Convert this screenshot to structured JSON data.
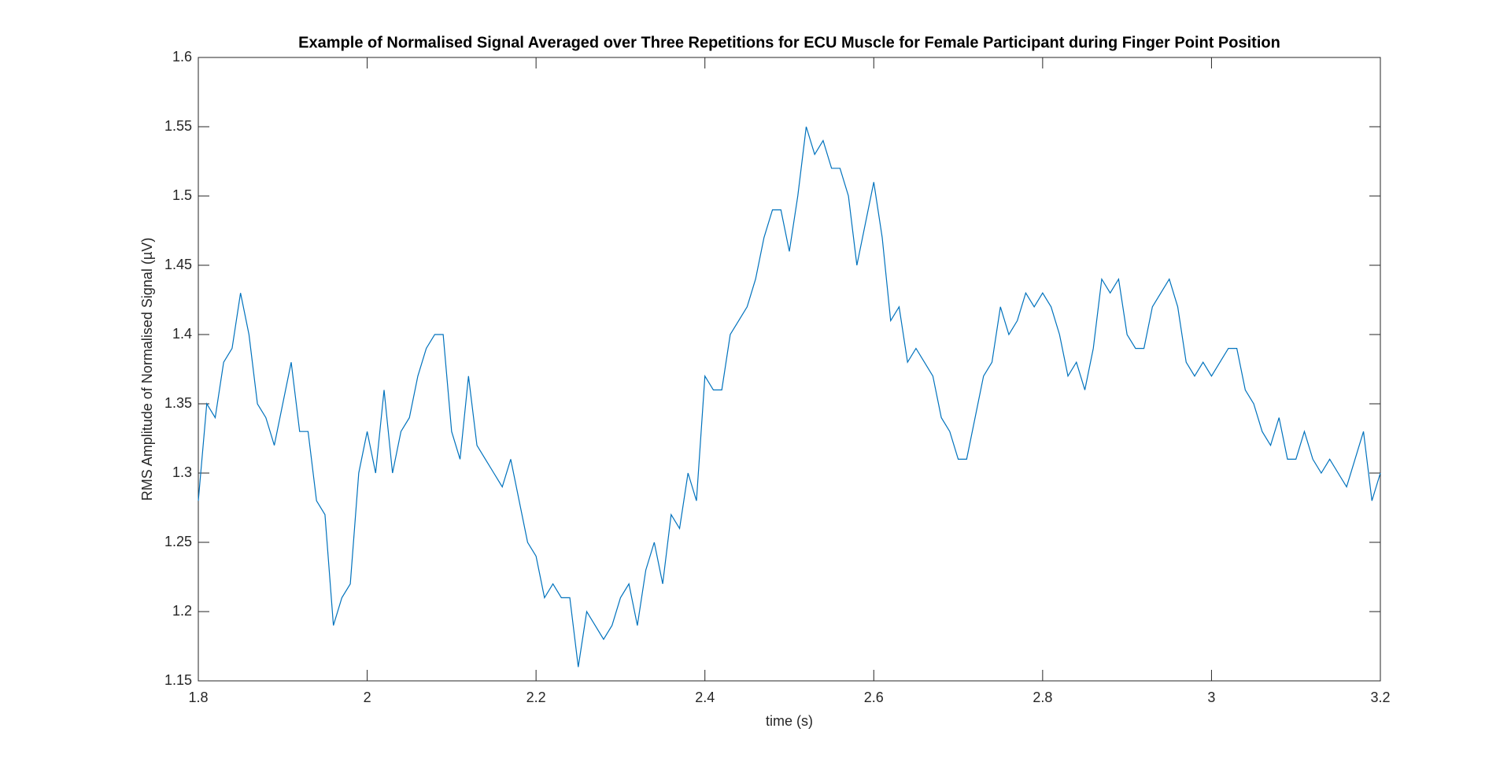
{
  "chart_data": {
    "type": "line",
    "title": "Example of Normalised Signal Averaged over Three Repetitions for ECU Muscle for Female Participant during Finger Point Position",
    "xlabel": "time (s)",
    "ylabel": "RMS Amplitude of Normalised Signal (µV)",
    "xlim": [
      1.8,
      3.2
    ],
    "xticks": [
      1.8,
      2,
      2.2,
      2.4,
      2.6,
      2.8,
      3,
      3.2
    ],
    "ylim": [
      1.15,
      1.6
    ],
    "yticks": [
      1.15,
      1.2,
      1.25,
      1.3,
      1.35,
      1.4,
      1.45,
      1.5,
      1.55,
      1.6
    ],
    "grid": false,
    "box": true,
    "x": [
      1.8,
      1.81,
      1.82,
      1.83,
      1.84,
      1.85,
      1.86,
      1.87,
      1.88,
      1.89,
      1.9,
      1.91,
      1.92,
      1.93,
      1.94,
      1.95,
      1.96,
      1.97,
      1.98,
      1.99,
      2.0,
      2.01,
      2.02,
      2.03,
      2.04,
      2.05,
      2.06,
      2.07,
      2.08,
      2.09,
      2.1,
      2.11,
      2.12,
      2.13,
      2.14,
      2.15,
      2.16,
      2.17,
      2.18,
      2.19,
      2.2,
      2.21,
      2.22,
      2.23,
      2.24,
      2.25,
      2.26,
      2.27,
      2.28,
      2.29,
      2.3,
      2.31,
      2.32,
      2.33,
      2.34,
      2.35,
      2.36,
      2.37,
      2.38,
      2.39,
      2.4,
      2.41,
      2.42,
      2.43,
      2.44,
      2.45,
      2.46,
      2.47,
      2.48,
      2.49,
      2.5,
      2.51,
      2.52,
      2.53,
      2.54,
      2.55,
      2.56,
      2.57,
      2.58,
      2.59,
      2.6,
      2.61,
      2.62,
      2.63,
      2.64,
      2.65,
      2.66,
      2.67,
      2.68,
      2.69,
      2.7,
      2.71,
      2.72,
      2.73,
      2.74,
      2.75,
      2.76,
      2.77,
      2.78,
      2.79,
      2.8,
      2.81,
      2.82,
      2.83,
      2.84,
      2.85,
      2.86,
      2.87,
      2.88,
      2.89,
      2.9,
      2.91,
      2.92,
      2.93,
      2.94,
      2.95,
      2.96,
      2.97,
      2.98,
      2.99,
      3.0,
      3.01,
      3.02,
      3.03,
      3.04,
      3.05,
      3.06,
      3.07,
      3.08,
      3.09,
      3.1,
      3.11,
      3.12,
      3.13,
      3.14,
      3.15,
      3.16,
      3.17,
      3.18,
      3.19,
      3.2
    ],
    "series": [
      {
        "color": "#0072bd",
        "values": [
          1.28,
          1.35,
          1.34,
          1.38,
          1.39,
          1.43,
          1.4,
          1.35,
          1.34,
          1.32,
          1.35,
          1.38,
          1.33,
          1.33,
          1.28,
          1.27,
          1.19,
          1.21,
          1.22,
          1.3,
          1.33,
          1.3,
          1.36,
          1.3,
          1.33,
          1.34,
          1.37,
          1.39,
          1.4,
          1.4,
          1.33,
          1.31,
          1.37,
          1.32,
          1.31,
          1.3,
          1.29,
          1.31,
          1.28,
          1.25,
          1.24,
          1.21,
          1.22,
          1.21,
          1.21,
          1.16,
          1.2,
          1.19,
          1.18,
          1.19,
          1.21,
          1.22,
          1.19,
          1.23,
          1.25,
          1.22,
          1.27,
          1.26,
          1.3,
          1.28,
          1.37,
          1.36,
          1.36,
          1.4,
          1.41,
          1.42,
          1.44,
          1.47,
          1.49,
          1.49,
          1.46,
          1.5,
          1.55,
          1.53,
          1.54,
          1.52,
          1.52,
          1.5,
          1.45,
          1.48,
          1.51,
          1.47,
          1.41,
          1.42,
          1.38,
          1.39,
          1.38,
          1.37,
          1.34,
          1.33,
          1.31,
          1.31,
          1.34,
          1.37,
          1.38,
          1.42,
          1.4,
          1.41,
          1.43,
          1.42,
          1.43,
          1.42,
          1.4,
          1.37,
          1.38,
          1.36,
          1.39,
          1.44,
          1.43,
          1.44,
          1.4,
          1.39,
          1.39,
          1.42,
          1.43,
          1.44,
          1.42,
          1.38,
          1.37,
          1.38,
          1.37,
          1.38,
          1.39,
          1.39,
          1.36,
          1.35,
          1.33,
          1.32,
          1.34,
          1.31,
          1.31,
          1.33,
          1.31,
          1.3,
          1.31,
          1.3,
          1.29,
          1.31,
          1.33,
          1.28,
          1.3
        ]
      }
    ]
  }
}
